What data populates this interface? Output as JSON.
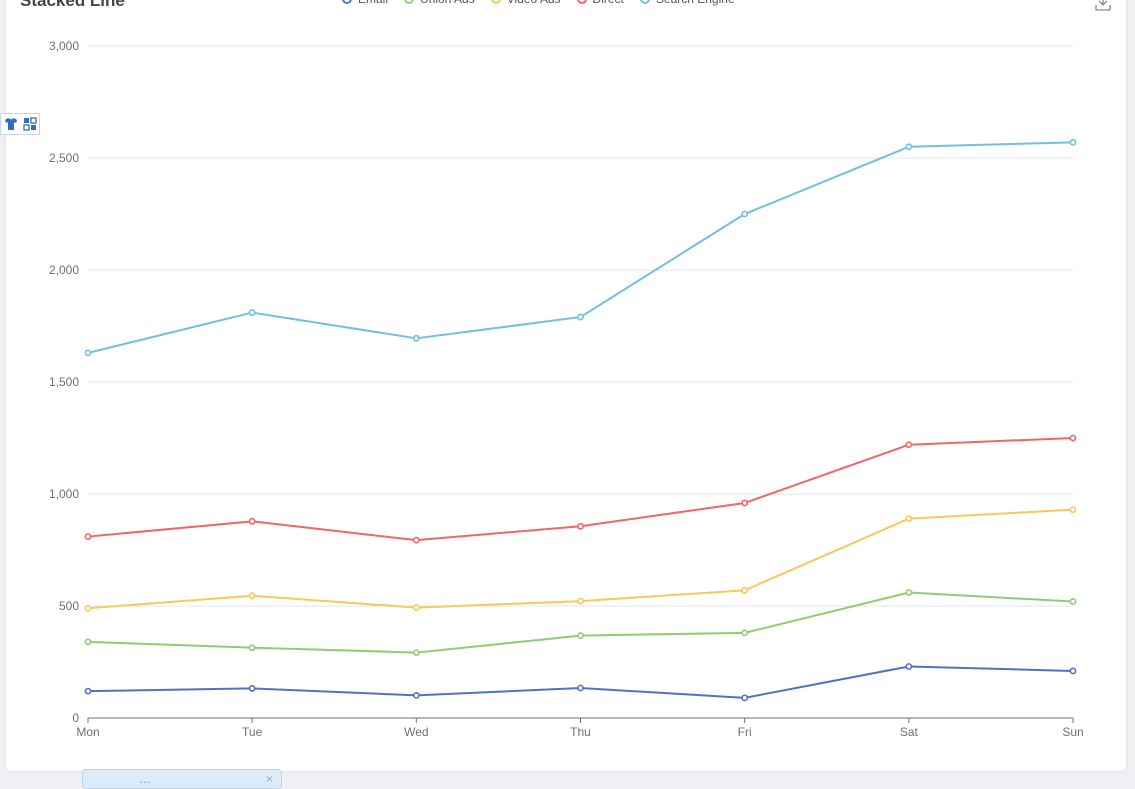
{
  "chart_data": {
    "type": "line",
    "title": "Stacked Line",
    "categories": [
      "Mon",
      "Tue",
      "Wed",
      "Thu",
      "Fri",
      "Sat",
      "Sun"
    ],
    "stacked": true,
    "series": [
      {
        "name": "Email",
        "color": "#5470c6",
        "values": [
          120,
          132,
          101,
          134,
          90,
          230,
          210
        ]
      },
      {
        "name": "Union Ads",
        "color": "#91cc75",
        "values": [
          220,
          182,
          191,
          234,
          290,
          330,
          310
        ]
      },
      {
        "name": "Video Ads",
        "color": "#fac858",
        "values": [
          150,
          232,
          201,
          154,
          190,
          330,
          410
        ]
      },
      {
        "name": "Direct",
        "color": "#ee6666",
        "values": [
          320,
          332,
          301,
          334,
          390,
          330,
          320
        ]
      },
      {
        "name": "Search Engine",
        "color": "#73c0de",
        "values": [
          820,
          932,
          901,
          934,
          1290,
          1330,
          1320
        ]
      }
    ],
    "yticks": [
      "0",
      "500",
      "1,000",
      "1,500",
      "2,000",
      "2,500",
      "3,000"
    ],
    "ylim": [
      0,
      3000
    ],
    "grid": true,
    "legend_position": "top-center"
  },
  "toolbox": {
    "icons": [
      "tshirt-icon",
      "layout-icon"
    ],
    "download_icon": "download-icon"
  },
  "bottom_tab": {
    "label": "…",
    "close": "×"
  }
}
